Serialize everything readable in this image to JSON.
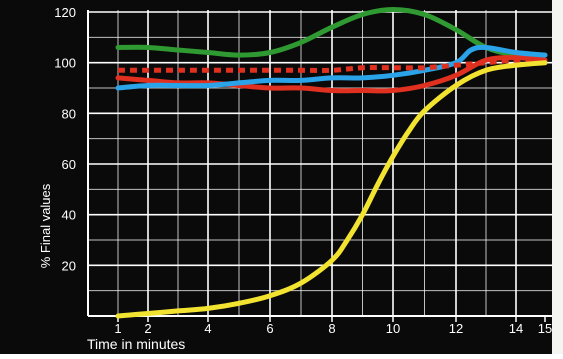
{
  "chart_data": {
    "type": "line",
    "title": "",
    "xlabel": "Time in minutes",
    "ylabel": "% Final values",
    "x_ticks": [
      1,
      2,
      4,
      6,
      8,
      10,
      12,
      14,
      15
    ],
    "y_ticks": [
      20,
      40,
      60,
      80,
      100,
      120
    ],
    "xlim": [
      0,
      15
    ],
    "ylim": [
      0,
      120
    ],
    "grid": true,
    "legend": "none",
    "colors": {
      "background": "#0a0a0a",
      "grid": "#ffffff",
      "text": "#ffffff"
    },
    "series": [
      {
        "color": "#f2e330",
        "style": "solid",
        "points": [
          [
            1,
            0
          ],
          [
            2,
            1
          ],
          [
            3,
            2
          ],
          [
            4,
            3
          ],
          [
            5,
            5
          ],
          [
            6,
            8
          ],
          [
            7,
            13
          ],
          [
            8,
            22
          ],
          [
            8.5,
            30
          ],
          [
            9,
            40
          ],
          [
            9.5,
            52
          ],
          [
            10,
            63
          ],
          [
            10.5,
            73
          ],
          [
            11,
            81
          ],
          [
            12,
            91
          ],
          [
            13,
            97
          ],
          [
            14,
            99
          ],
          [
            15,
            100
          ]
        ]
      },
      {
        "color": "#2f9a32",
        "style": "solid",
        "points": [
          [
            1,
            106
          ],
          [
            2,
            106
          ],
          [
            3,
            105
          ],
          [
            4,
            104
          ],
          [
            5,
            103
          ],
          [
            6,
            104
          ],
          [
            7,
            108
          ],
          [
            8,
            114
          ],
          [
            9,
            119
          ],
          [
            10,
            121
          ],
          [
            11,
            119
          ],
          [
            12,
            113
          ],
          [
            13,
            106
          ],
          [
            14,
            103
          ],
          [
            15,
            103
          ]
        ]
      },
      {
        "color": "#2aa3e8",
        "style": "solid",
        "points": [
          [
            1,
            90
          ],
          [
            2,
            91
          ],
          [
            3,
            91
          ],
          [
            4,
            91
          ],
          [
            5,
            92
          ],
          [
            6,
            93
          ],
          [
            7,
            93
          ],
          [
            8,
            94
          ],
          [
            9,
            94
          ],
          [
            10,
            95
          ],
          [
            11,
            97
          ],
          [
            12,
            100
          ],
          [
            12.5,
            105
          ],
          [
            13,
            106
          ],
          [
            14,
            104
          ],
          [
            15,
            103
          ]
        ]
      },
      {
        "color": "#e03020",
        "style": "solid",
        "points": [
          [
            1,
            94
          ],
          [
            2,
            93
          ],
          [
            3,
            92
          ],
          [
            4,
            92
          ],
          [
            5,
            91
          ],
          [
            6,
            90
          ],
          [
            7,
            90
          ],
          [
            8,
            89
          ],
          [
            9,
            89
          ],
          [
            10,
            89
          ],
          [
            11,
            91
          ],
          [
            12,
            95
          ],
          [
            13,
            101
          ],
          [
            14,
            102
          ],
          [
            15,
            101
          ]
        ]
      },
      {
        "color": "#e03020",
        "style": "dashed",
        "points": [
          [
            1,
            97
          ],
          [
            2,
            97
          ],
          [
            3,
            97
          ],
          [
            4,
            97
          ],
          [
            5,
            97
          ],
          [
            6,
            97
          ],
          [
            7,
            97
          ],
          [
            8,
            97
          ],
          [
            9,
            98
          ],
          [
            10,
            98
          ],
          [
            11,
            98
          ],
          [
            12,
            99
          ],
          [
            13,
            100
          ],
          [
            14,
            101
          ],
          [
            15,
            101
          ]
        ]
      }
    ]
  }
}
